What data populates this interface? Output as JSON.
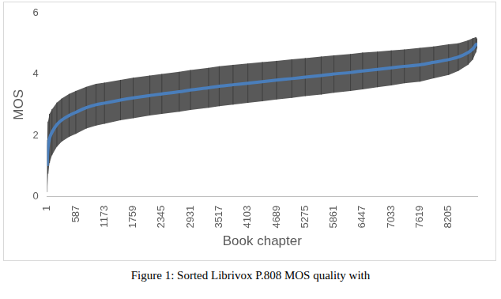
{
  "chart_data": {
    "type": "line",
    "caption": "Figure 1: Sorted Librivox P.808 MOS quality with",
    "x_label": "Book chapter",
    "y_label": "MOS",
    "x": [
      1,
      20,
      50,
      100,
      200,
      300,
      450,
      587,
      800,
      1000,
      1173,
      1500,
      1759,
      2100,
      2345,
      2700,
      2931,
      3300,
      3517,
      3800,
      4103,
      4400,
      4689,
      5000,
      5275,
      5600,
      5861,
      6200,
      6447,
      6750,
      7033,
      7300,
      7619,
      7900,
      8205,
      8400,
      8600,
      8700,
      8760,
      8790
    ],
    "values": [
      1.0,
      1.6,
      1.9,
      2.1,
      2.35,
      2.5,
      2.65,
      2.75,
      2.9,
      3.0,
      3.05,
      3.15,
      3.22,
      3.3,
      3.35,
      3.42,
      3.48,
      3.55,
      3.6,
      3.65,
      3.7,
      3.75,
      3.8,
      3.85,
      3.9,
      3.95,
      4.0,
      4.05,
      4.1,
      4.15,
      4.2,
      4.25,
      4.3,
      4.38,
      4.47,
      4.55,
      4.7,
      4.82,
      4.95,
      5.0
    ],
    "errors": [
      0.85,
      0.85,
      0.8,
      0.75,
      0.72,
      0.7,
      0.7,
      0.7,
      0.68,
      0.68,
      0.67,
      0.66,
      0.66,
      0.65,
      0.65,
      0.65,
      0.65,
      0.65,
      0.65,
      0.65,
      0.64,
      0.64,
      0.63,
      0.63,
      0.62,
      0.62,
      0.61,
      0.6,
      0.6,
      0.58,
      0.57,
      0.55,
      0.55,
      0.52,
      0.5,
      0.45,
      0.4,
      0.35,
      0.25,
      0.15
    ],
    "color": "#4a7ebb",
    "xlim": [
      1,
      8790
    ],
    "xticks": [
      1,
      587,
      1173,
      1759,
      2345,
      2931,
      3517,
      4103,
      4689,
      5275,
      5861,
      6447,
      7033,
      7619,
      8205
    ],
    "ylim": [
      0,
      6
    ],
    "yticks": [
      0,
      2,
      4,
      6
    ],
    "grid": false
  }
}
